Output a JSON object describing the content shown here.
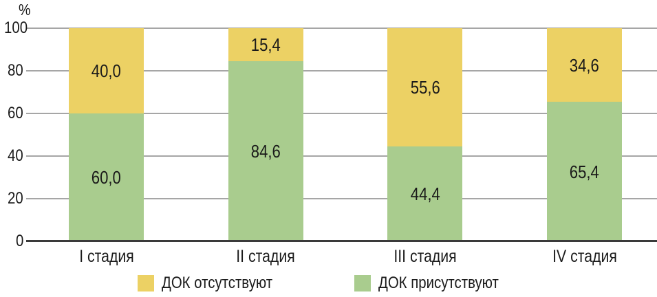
{
  "chart_data": {
    "type": "bar",
    "stacked": true,
    "title": "",
    "xlabel": "",
    "ylabel": "%",
    "ylim": [
      0,
      100
    ],
    "yticks": [
      0,
      20,
      40,
      60,
      80,
      100
    ],
    "grid": true,
    "legend_position": "bottom",
    "categories": [
      "I стадия",
      "II стадия",
      "III стадия",
      "IV стадия"
    ],
    "series": [
      {
        "key": "present",
        "name": "ДОК присутствуют",
        "color": "#a9cc8e",
        "values": [
          60.0,
          84.6,
          44.4,
          65.4
        ],
        "labels": [
          "60,0",
          "84,6",
          "44,4",
          "65,4"
        ]
      },
      {
        "key": "absent",
        "name": "ДОК отсутствуют",
        "color": "#ecd164",
        "values": [
          40.0,
          15.4,
          55.6,
          34.6
        ],
        "labels": [
          "40,0",
          "15,4",
          "55,6",
          "34,6"
        ]
      }
    ],
    "legend": [
      {
        "key": "absent",
        "label": "ДОК отсутствуют",
        "color": "#ecd164"
      },
      {
        "key": "present",
        "label": "ДОК присутствуют",
        "color": "#a9cc8e"
      }
    ]
  },
  "style_colors": {
    "gridline": "#a6a6a6",
    "axis_line": "#3a3a3a",
    "text": "#1a1a1a",
    "background": "#ffffff"
  }
}
